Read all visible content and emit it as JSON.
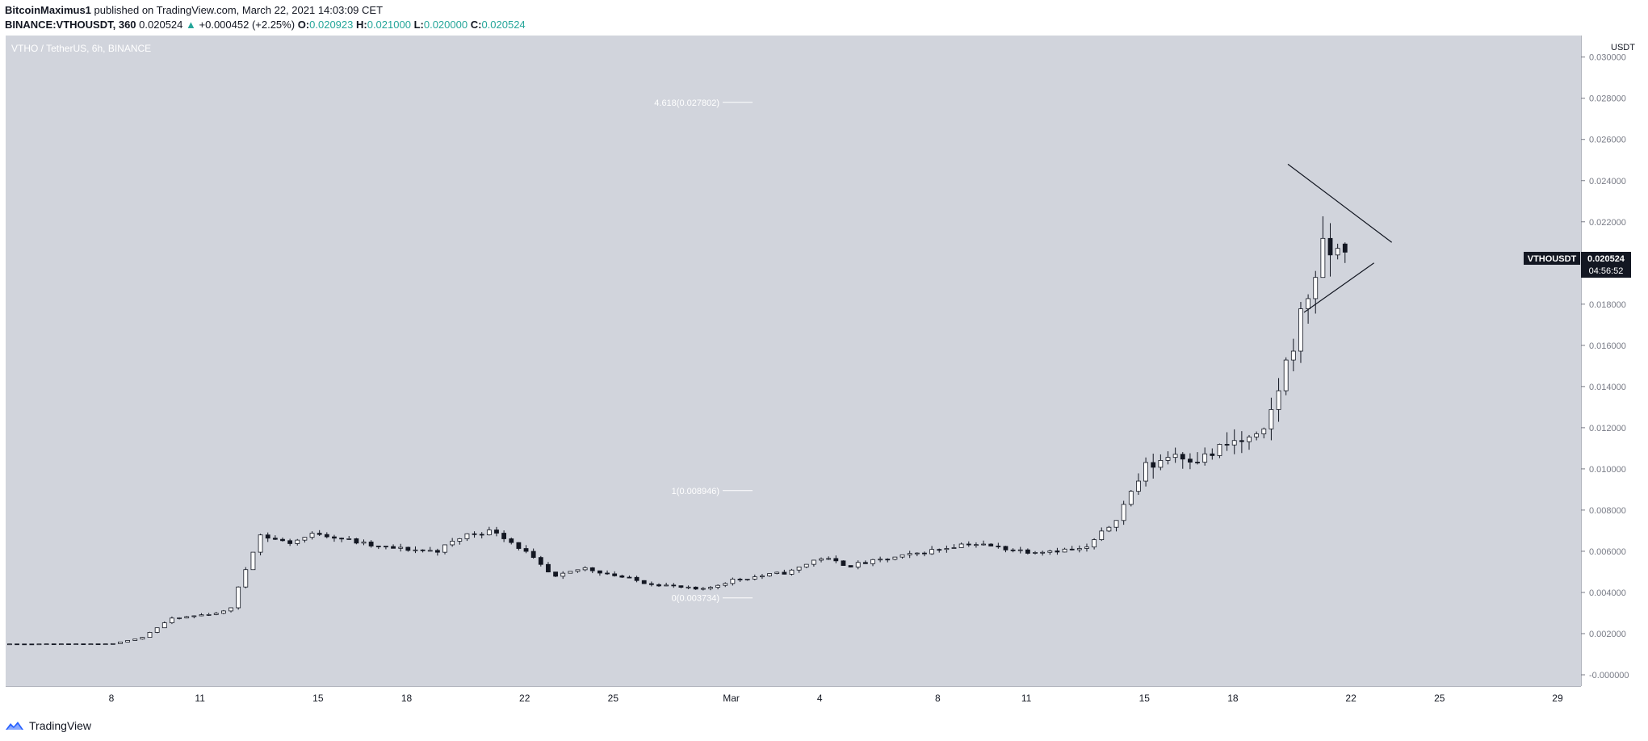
{
  "header": {
    "author": "BitcoinMaximus1",
    "published": "published on TradingView.com, March 22, 2021 14:03:09 CET",
    "symbol": "BINANCE:VTHOUSDT, 360",
    "last_price": "0.020524",
    "change": "+0.000452 (+2.25%)",
    "o_label": "O:",
    "o_value": "0.020923",
    "h_label": "H:",
    "h_value": "0.021000",
    "l_label": "L:",
    "l_value": "0.020000",
    "c_label": "C:",
    "c_value": "0.020524"
  },
  "pane_title": "VTHO / TetherUS, 6h, BINANCE",
  "currency": "USDT",
  "price_badge": {
    "symbol": "VTHOUSDT",
    "price": "0.020524",
    "countdown": "04:56:52"
  },
  "footer": {
    "brand": "TradingView"
  },
  "colors": {
    "pane_bg": "#d1d4dc",
    "up_candle": "#ffffff",
    "down_candle": "#131722",
    "wick": "#131722",
    "fib_line": "#ffffff",
    "change_color": "#26a69a"
  },
  "chart_data": {
    "type": "candlestick",
    "title": "VTHO / TetherUS, 6h, BINANCE",
    "interval": "6h",
    "ylabel": "USDT",
    "ylim": [
      -0.001,
      0.031
    ],
    "y_ticks": [
      "0.030000",
      "0.028000",
      "0.026000",
      "0.024000",
      "0.022000",
      "0.020000",
      "0.018000",
      "0.016000",
      "0.014000",
      "0.012000",
      "0.010000",
      "0.008000",
      "0.006000",
      "0.004000",
      "0.002000",
      "0.000000"
    ],
    "x_ticks": [
      "8",
      "11",
      "15",
      "18",
      "22",
      "25",
      "Mar",
      "4",
      "8",
      "11",
      "15",
      "18",
      "22",
      "25",
      "29"
    ],
    "fib_levels": [
      {
        "label": "4.618(0.027802)",
        "value": 0.027802
      },
      {
        "label": "1(0.008946)",
        "value": 0.008946
      },
      {
        "label": "0(0.003734)",
        "value": 0.003734
      }
    ],
    "anchors": [
      {
        "date": "2021-02-08",
        "close": 0.0015
      },
      {
        "date": "2021-02-09",
        "close": 0.0018
      },
      {
        "date": "2021-02-10",
        "close": 0.0027
      },
      {
        "date": "2021-02-11",
        "close": 0.0029
      },
      {
        "date": "2021-02-12",
        "close": 0.0031
      },
      {
        "date": "2021-02-13",
        "close": 0.0068
      },
      {
        "date": "2021-02-14",
        "close": 0.0064
      },
      {
        "date": "2021-02-15",
        "close": 0.0069
      },
      {
        "date": "2021-02-17",
        "close": 0.0062
      },
      {
        "date": "2021-02-19",
        "close": 0.006
      },
      {
        "date": "2021-02-20",
        "close": 0.0068
      },
      {
        "date": "2021-02-21",
        "close": 0.007
      },
      {
        "date": "2021-02-22",
        "close": 0.006
      },
      {
        "date": "2021-02-23",
        "close": 0.0047
      },
      {
        "date": "2021-02-24",
        "close": 0.0052
      },
      {
        "date": "2021-02-26",
        "close": 0.0045
      },
      {
        "date": "2021-02-28",
        "close": 0.0041
      },
      {
        "date": "2021-03-01",
        "close": 0.0046
      },
      {
        "date": "2021-03-03",
        "close": 0.005
      },
      {
        "date": "2021-03-04",
        "close": 0.0057
      },
      {
        "date": "2021-03-05",
        "close": 0.0053
      },
      {
        "date": "2021-03-07",
        "close": 0.0058
      },
      {
        "date": "2021-03-09",
        "close": 0.0064
      },
      {
        "date": "2021-03-11",
        "close": 0.006
      },
      {
        "date": "2021-03-13",
        "close": 0.0061
      },
      {
        "date": "2021-03-14",
        "close": 0.0075
      },
      {
        "date": "2021-03-15",
        "close": 0.01
      },
      {
        "date": "2021-03-16",
        "close": 0.0108
      },
      {
        "date": "2021-03-17",
        "close": 0.0105
      },
      {
        "date": "2021-03-18",
        "close": 0.0113
      },
      {
        "date": "2021-03-19",
        "close": 0.0114
      },
      {
        "date": "2021-03-20",
        "close": 0.016
      },
      {
        "date": "2021-03-21",
        "close": 0.0205
      },
      {
        "date": "2021-03-22",
        "close": 0.020524
      }
    ],
    "triangle": {
      "upper": [
        {
          "date": "2021-03-20",
          "price": 0.0248
        },
        {
          "date": "2021-03-23",
          "price": 0.021
        }
      ],
      "lower": [
        {
          "date": "2021-03-20",
          "price": 0.0176
        },
        {
          "date": "2021-03-23",
          "price": 0.021
        }
      ]
    }
  }
}
